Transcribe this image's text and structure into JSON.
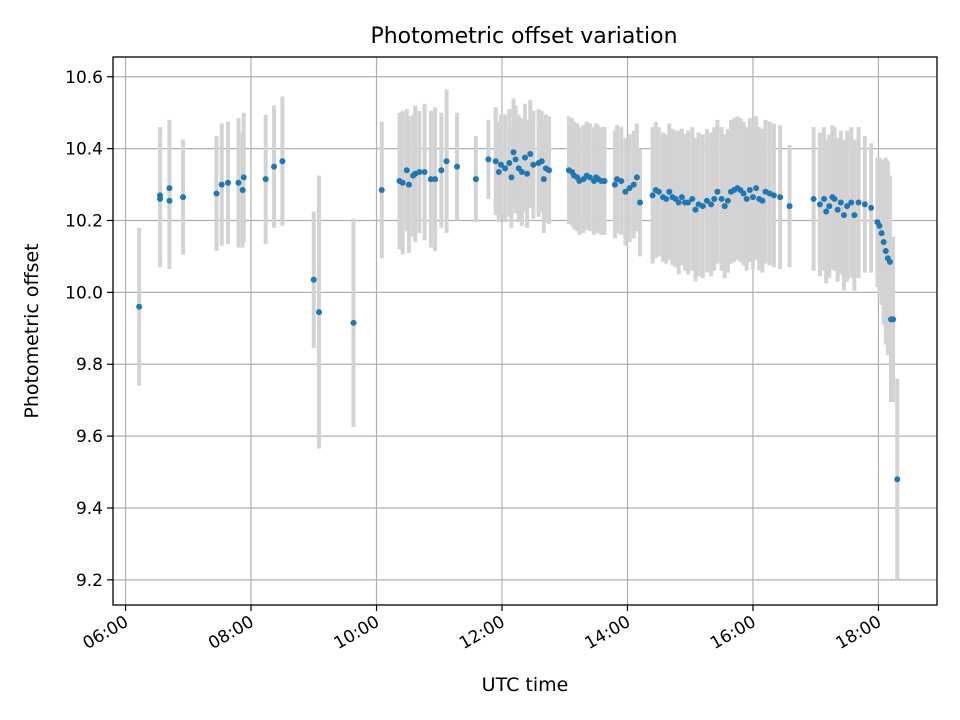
{
  "chart_data": {
    "type": "scatter",
    "title": "Photometric offset variation",
    "xlabel": "UTC time",
    "ylabel": "Photometric offset",
    "xlim": [
      "05:48",
      "18:56"
    ],
    "ylim": [
      9.13,
      10.655
    ],
    "xticks": [
      "06:00",
      "08:00",
      "10:00",
      "12:00",
      "14:00",
      "16:00",
      "18:00"
    ],
    "yticks": [
      "9.2",
      "9.4",
      "9.6",
      "9.8",
      "10.0",
      "10.2",
      "10.4",
      "10.6"
    ],
    "grid": true,
    "colors": {
      "points": "#1f77b4",
      "errorbars": "#d3d3d3",
      "grid": "#b0b0b0"
    },
    "series": [
      {
        "x": [
          "06:13",
          "06:33",
          "06:33",
          "06:42",
          "06:42",
          "06:55",
          "07:27",
          "07:32",
          "07:38",
          "07:48",
          "07:52",
          "07:53",
          "08:14",
          "08:22",
          "08:30",
          "09:00",
          "09:05",
          "09:38",
          "10:05",
          "10:22",
          "10:25",
          "10:29",
          "10:31",
          "10:35",
          "10:37",
          "10:41",
          "10:46",
          "10:52",
          "10:56",
          "11:02",
          "11:07",
          "11:17",
          "11:35",
          "11:47",
          "11:54",
          "11:57",
          "11:59",
          "12:03",
          "12:07",
          "12:09",
          "12:11",
          "12:13",
          "12:16",
          "12:19",
          "12:22",
          "12:24",
          "12:27",
          "12:30",
          "12:35",
          "12:38",
          "12:40",
          "12:42",
          "12:45",
          "13:04",
          "13:07",
          "13:09",
          "13:12",
          "13:14",
          "13:18",
          "13:21",
          "13:24",
          "13:28",
          "13:30",
          "13:32",
          "13:35",
          "13:38",
          "13:48",
          "13:50",
          "13:54",
          "13:58",
          "14:02",
          "14:06",
          "14:09",
          "14:12",
          "14:24",
          "14:27",
          "14:30",
          "14:34",
          "14:37",
          "14:40",
          "14:43",
          "14:46",
          "14:49",
          "14:52",
          "14:55",
          "14:58",
          "15:02",
          "15:05",
          "15:08",
          "15:12",
          "15:16",
          "15:20",
          "15:23",
          "15:26",
          "15:30",
          "15:33",
          "15:36",
          "15:39",
          "15:42",
          "15:45",
          "15:48",
          "15:51",
          "15:54",
          "15:57",
          "16:00",
          "16:03",
          "16:06",
          "16:09",
          "16:12",
          "16:16",
          "16:20",
          "16:26",
          "16:35",
          "16:58",
          "17:04",
          "17:08",
          "17:10",
          "17:13",
          "17:16",
          "17:18",
          "17:21",
          "17:24",
          "17:27",
          "17:30",
          "17:34",
          "17:37",
          "17:41",
          "17:47",
          "17:53",
          "17:59",
          "18:01",
          "18:03",
          "18:05",
          "18:07",
          "18:09",
          "18:11",
          "18:12",
          "18:14",
          "18:18"
        ],
        "y": [
          9.96,
          10.26,
          10.27,
          10.255,
          10.29,
          10.265,
          10.275,
          10.3,
          10.305,
          10.305,
          10.285,
          10.32,
          10.315,
          10.35,
          10.365,
          10.035,
          9.945,
          9.915,
          10.285,
          10.31,
          10.305,
          10.34,
          10.3,
          10.325,
          10.33,
          10.335,
          10.335,
          10.315,
          10.315,
          10.34,
          10.365,
          10.35,
          10.315,
          10.37,
          10.365,
          10.335,
          10.355,
          10.345,
          10.36,
          10.32,
          10.39,
          10.37,
          10.345,
          10.335,
          10.375,
          10.33,
          10.385,
          10.355,
          10.36,
          10.365,
          10.315,
          10.345,
          10.34,
          10.34,
          10.335,
          10.325,
          10.32,
          10.31,
          10.315,
          10.325,
          10.32,
          10.31,
          10.32,
          10.315,
          10.31,
          10.31,
          10.3,
          10.315,
          10.31,
          10.28,
          10.29,
          10.3,
          10.32,
          10.25,
          10.27,
          10.285,
          10.28,
          10.265,
          10.26,
          10.28,
          10.265,
          10.26,
          10.25,
          10.265,
          10.25,
          10.25,
          10.26,
          10.23,
          10.245,
          10.24,
          10.255,
          10.245,
          10.26,
          10.28,
          10.26,
          10.24,
          10.255,
          10.28,
          10.285,
          10.29,
          10.285,
          10.275,
          10.26,
          10.285,
          10.265,
          10.29,
          10.26,
          10.255,
          10.28,
          10.275,
          10.27,
          10.265,
          10.24,
          10.26,
          10.245,
          10.26,
          10.225,
          10.24,
          10.265,
          10.26,
          10.23,
          10.25,
          10.215,
          10.24,
          10.25,
          10.215,
          10.25,
          10.245,
          10.235,
          10.195,
          10.185,
          10.165,
          10.14,
          10.115,
          10.095,
          10.085,
          9.925,
          9.925,
          9.48
        ],
        "yerr": [
          0.22,
          0.19,
          0.19,
          0.19,
          0.19,
          0.16,
          0.16,
          0.17,
          0.17,
          0.18,
          0.16,
          0.18,
          0.18,
          0.17,
          0.18,
          0.19,
          0.38,
          0.29,
          0.19,
          0.19,
          0.2,
          0.17,
          0.19,
          0.17,
          0.19,
          0.17,
          0.19,
          0.19,
          0.2,
          0.16,
          0.2,
          0.15,
          0.12,
          0.11,
          0.15,
          0.14,
          0.14,
          0.15,
          0.15,
          0.14,
          0.15,
          0.15,
          0.15,
          0.15,
          0.15,
          0.15,
          0.15,
          0.15,
          0.15,
          0.14,
          0.15,
          0.15,
          0.15,
          0.15,
          0.15,
          0.15,
          0.15,
          0.15,
          0.15,
          0.15,
          0.15,
          0.15,
          0.15,
          0.15,
          0.15,
          0.15,
          0.15,
          0.15,
          0.15,
          0.15,
          0.15,
          0.15,
          0.15,
          0.15,
          0.19,
          0.19,
          0.18,
          0.18,
          0.18,
          0.19,
          0.19,
          0.19,
          0.2,
          0.19,
          0.19,
          0.2,
          0.2,
          0.2,
          0.2,
          0.2,
          0.2,
          0.2,
          0.2,
          0.2,
          0.2,
          0.2,
          0.2,
          0.2,
          0.2,
          0.2,
          0.2,
          0.2,
          0.2,
          0.2,
          0.2,
          0.2,
          0.2,
          0.2,
          0.2,
          0.2,
          0.2,
          0.2,
          0.17,
          0.2,
          0.2,
          0.2,
          0.2,
          0.2,
          0.2,
          0.2,
          0.2,
          0.2,
          0.21,
          0.21,
          0.21,
          0.21,
          0.21,
          0.19,
          0.18,
          0.18,
          0.19,
          0.2,
          0.23,
          0.26,
          0.27,
          0.24,
          0.23,
          0.23,
          0.28
        ]
      }
    ]
  }
}
